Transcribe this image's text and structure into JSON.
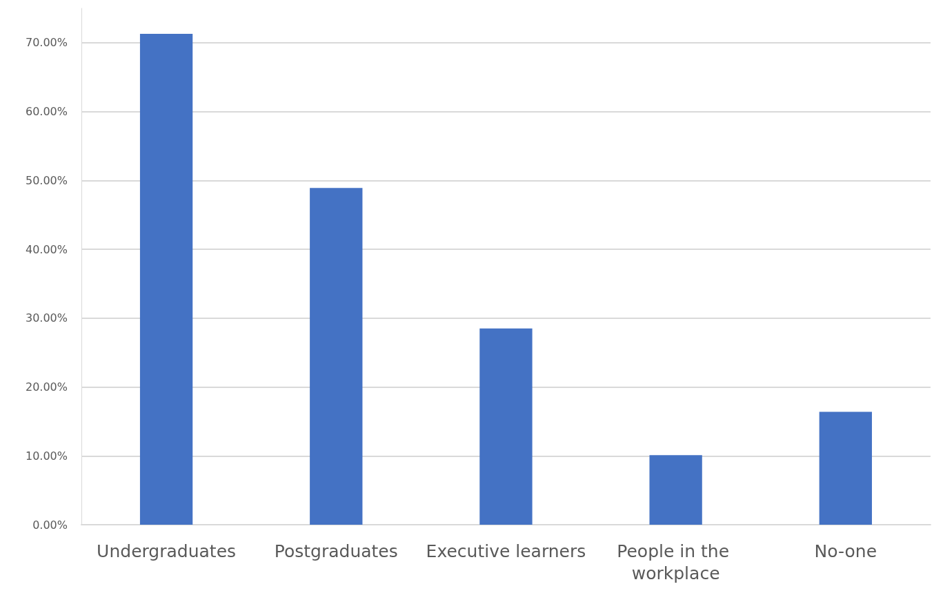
{
  "chart_data": {
    "type": "bar",
    "categories": [
      "Undergraduates",
      "Postgraduates",
      "Executive learners",
      "People in the workplace",
      "No-one"
    ],
    "values": [
      71.3,
      48.9,
      28.5,
      10.1,
      16.4
    ],
    "color": "#4472c4",
    "ylim": [
      0,
      75
    ],
    "yticks": [
      {
        "value": 0,
        "label": "0.00%"
      },
      {
        "value": 10,
        "label": "10.00%"
      },
      {
        "value": 20,
        "label": "20.00%"
      },
      {
        "value": 30,
        "label": "30.00%"
      },
      {
        "value": 40,
        "label": "40.00%"
      },
      {
        "value": 50,
        "label": "50.00%"
      },
      {
        "value": 60,
        "label": "60.00%"
      },
      {
        "value": 70,
        "label": "70.00%"
      }
    ],
    "grid": "y"
  }
}
